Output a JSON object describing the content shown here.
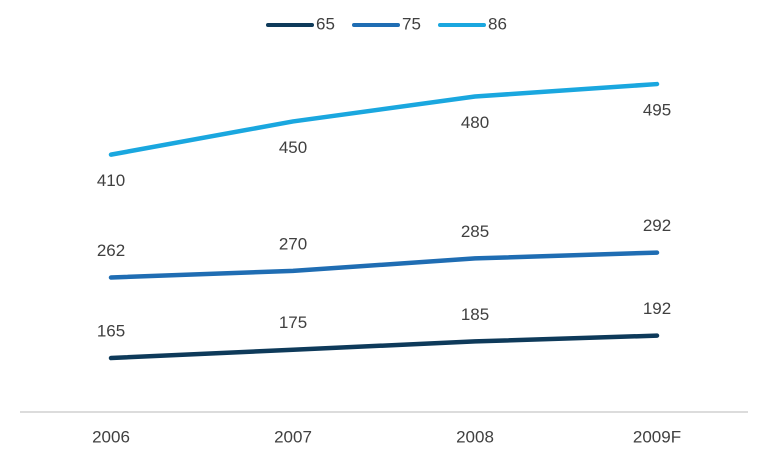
{
  "chart_data": {
    "type": "line",
    "categories": [
      "2006",
      "2007",
      "2008",
      "2009F"
    ],
    "series": [
      {
        "name": "65",
        "color": "#0e3a5a",
        "values": [
          165,
          175,
          185,
          192
        ]
      },
      {
        "name": "75",
        "color": "#1f6db3",
        "values": [
          262,
          270,
          285,
          292
        ]
      },
      {
        "name": "86",
        "color": "#1aa7df",
        "values": [
          410,
          450,
          480,
          495
        ]
      }
    ],
    "ylim": [
      100,
      530
    ]
  }
}
